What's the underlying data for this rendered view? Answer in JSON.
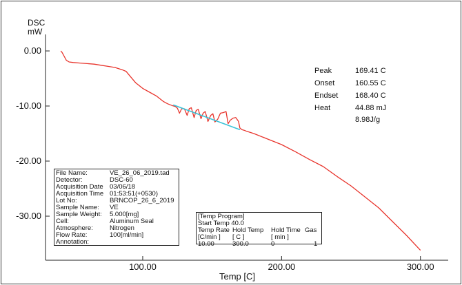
{
  "chart_data": {
    "type": "line",
    "ylabel_line1": "DSC",
    "ylabel_line2": "mW",
    "xlabel": "Temp  [C]",
    "xlim": [
      30,
      320
    ],
    "ylim": [
      -38,
      3
    ],
    "y_ticks": [
      0,
      -10,
      -20,
      -30
    ],
    "y_tick_labels": [
      "0.00",
      "-10.00",
      "-20.00",
      "-30.00"
    ],
    "x_ticks": [
      100,
      200,
      300
    ],
    "x_tick_labels": [
      "100.00",
      "200.00",
      "300.00"
    ],
    "grid": false,
    "series": [
      {
        "color": "#e8342c",
        "x": [
          41.0,
          42.0,
          43.5,
          45.0,
          47.0,
          50.0,
          55.0,
          60.0,
          65.0,
          70.0,
          75.0,
          80.0,
          85.0,
          88.0,
          90.0,
          95.0,
          100.0,
          105.0,
          110.0,
          115.0,
          118.0,
          121.0,
          123.5,
          125.0,
          126.5,
          128.0,
          130.0,
          132.0,
          133.5,
          135.0,
          137.0,
          138.5,
          140.0,
          142.0,
          143.5,
          145.0,
          147.0,
          149.0,
          150.5,
          152.0,
          154.0,
          156.0,
          158.0,
          160.0,
          161.5,
          163.0,
          165.0,
          167.0,
          169.0,
          170.0,
          171.5,
          173.0,
          175.0,
          180.0,
          190.0,
          200.0,
          210.0,
          220.0,
          230.0,
          240.0,
          250.0,
          260.0,
          270.0,
          280.0,
          290.0,
          300.0
        ],
        "y": [
          0.0,
          -0.3,
          -1.0,
          -1.7,
          -2.0,
          -2.1,
          -2.2,
          -2.3,
          -2.4,
          -2.6,
          -2.8,
          -3.0,
          -3.4,
          -3.7,
          -4.3,
          -5.8,
          -6.8,
          -7.5,
          -8.2,
          -9.2,
          -9.6,
          -9.9,
          -10.1,
          -10.4,
          -11.3,
          -10.5,
          -10.5,
          -11.7,
          -10.5,
          -10.3,
          -12.1,
          -10.8,
          -10.6,
          -12.3,
          -11.3,
          -11.0,
          -12.8,
          -11.7,
          -11.4,
          -12.9,
          -12.4,
          -11.3,
          -11.2,
          -11.0,
          -13.2,
          -12.6,
          -12.2,
          -12.1,
          -12.8,
          -14.0,
          -14.3,
          -14.4,
          -14.6,
          -15.0,
          -16.0,
          -17.0,
          -18.3,
          -19.7,
          -21.0,
          -22.8,
          -24.5,
          -26.5,
          -28.5,
          -31.0,
          -33.5,
          -36.2
        ]
      },
      {
        "color": "#39c3d8",
        "x": [
          122.0,
          170.0
        ],
        "y": [
          -9.8,
          -14.3
        ]
      }
    ]
  },
  "results": [
    {
      "label": "Peak",
      "value": "169.41 C"
    },
    {
      "label": "Onset",
      "value": "160.55 C"
    },
    {
      "label": "Endset",
      "value": "168.40 C"
    },
    {
      "label": "Heat",
      "value": "44.88 mJ"
    },
    {
      "label": "",
      "value": "8.98J/g"
    }
  ],
  "file_info": [
    {
      "key": "File Name:",
      "value": "VE_26_06_2019.tad"
    },
    {
      "key": "Detector:",
      "value": "DSC-60"
    },
    {
      "key": "Acquisition Date",
      "value": "03/06/18"
    },
    {
      "key": "Acquisition Time",
      "value": "01:53:51(+0530)"
    },
    {
      "key": "Lot No:",
      "value": "BRNCOP_26_6_2019"
    },
    {
      "key": "Sample Name:",
      "value": "VE"
    },
    {
      "key": "Sample Weight:",
      "value": "5.000[mg]"
    },
    {
      "key": "Cell:",
      "value": "Aluminum Seal"
    },
    {
      "key": "Atmosphere:",
      "value": "Nitrogen"
    },
    {
      "key": "Flow Rate:",
      "value": "100[ml/min]"
    },
    {
      "key": "Annotation:",
      "value": ""
    }
  ],
  "temp_program": {
    "title": "[Temp Program]",
    "start_temp": "Start Temp   40.0",
    "headers": [
      "Temp Rate",
      "Hold Temp",
      "Hold Time",
      "Gas"
    ],
    "units": [
      "[C/min ]",
      "[  C  ]",
      "[  min  ]"
    ],
    "row": [
      "10.00",
      "300.0",
      "0",
      "1"
    ]
  }
}
